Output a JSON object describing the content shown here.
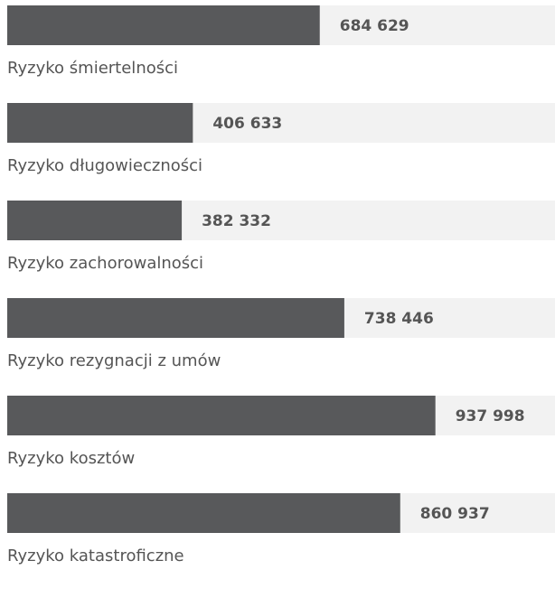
{
  "chart_data": {
    "type": "bar",
    "orientation": "horizontal",
    "categories": [
      "Ryzyko śmiertelności",
      "Ryzyko długowieczności",
      "Ryzyko zachorowalności",
      "Ryzyko rezygnacji z umów",
      "Ryzyko kosztów",
      "Ryzyko katastroficzne"
    ],
    "values": [
      684629,
      406633,
      382332,
      738446,
      937998,
      860937
    ],
    "value_labels": [
      "684 629",
      "406 633",
      "382 332",
      "738 446",
      "937 998",
      "860 937"
    ],
    "color": "#58595b",
    "track_color": "#f2f2f2",
    "xlim": [
      0,
      1200000
    ]
  }
}
